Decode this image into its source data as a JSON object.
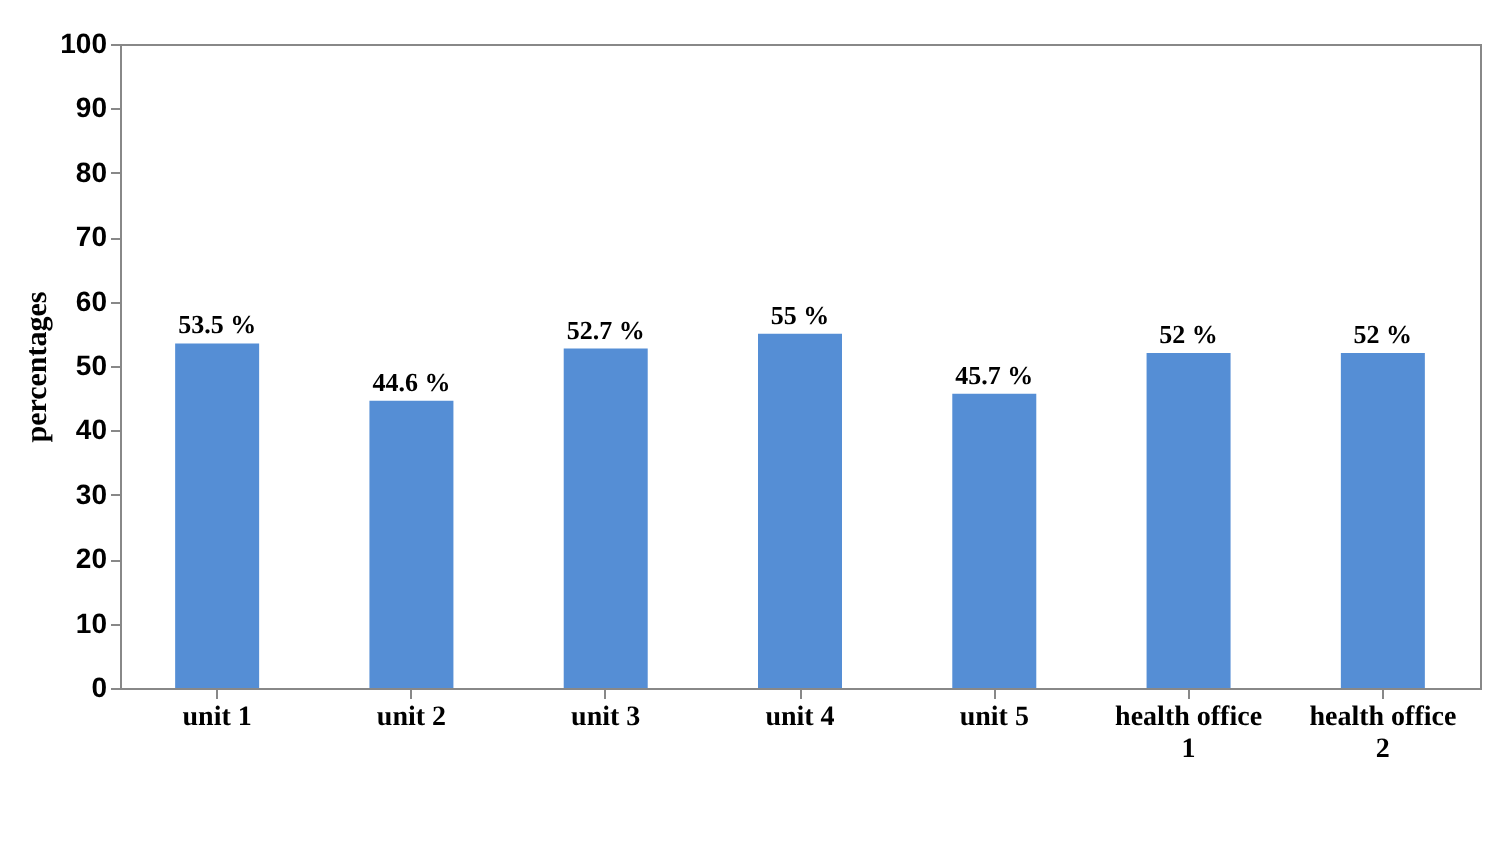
{
  "chart_data": {
    "type": "bar",
    "ylabel": "percentages",
    "categories": [
      "unit 1",
      "unit 2",
      "unit  3",
      "unit  4",
      "unit  5",
      "health office 1",
      "health office 2"
    ],
    "values": [
      53.5,
      44.6,
      52.7,
      55,
      45.7,
      52,
      52
    ],
    "value_labels": [
      "53.5 %",
      "44.6 %",
      "52.7 %",
      "55 %",
      "45.7 %",
      "52 %",
      "52 %"
    ],
    "color": "#558ed5",
    "ylim": [
      0,
      100
    ],
    "yticks": [
      0,
      10,
      20,
      30,
      40,
      50,
      60,
      70,
      80,
      90,
      100
    ],
    "grid": false
  }
}
